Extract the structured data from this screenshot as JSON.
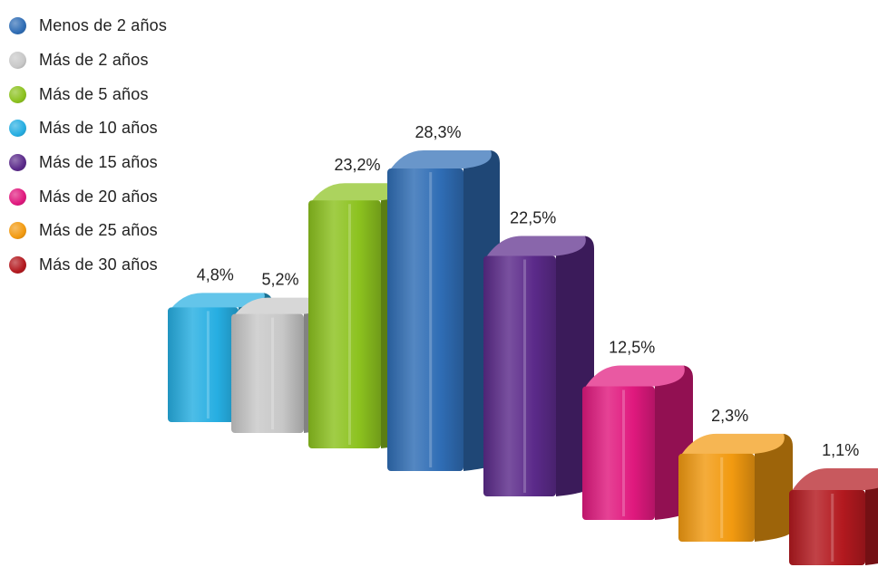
{
  "chart_data": {
    "type": "bar",
    "title": "",
    "xlabel": "",
    "ylabel": "",
    "grid": false,
    "legend_position": "top-left",
    "style": "3d",
    "legend": [
      {
        "label": "Menos de 2 años",
        "color": "#2f6db5"
      },
      {
        "label": "Más de 2 años",
        "color": "#c8c8c8"
      },
      {
        "label": "Más de 5 años",
        "color": "#8cc21f"
      },
      {
        "label": "Más de 10 años",
        "color": "#26aee2"
      },
      {
        "label": "Más de 15 años",
        "color": "#5b2a8a"
      },
      {
        "label": "Más de 20 años",
        "color": "#e0197e"
      },
      {
        "label": "Más de 25 años",
        "color": "#f29a10"
      },
      {
        "label": "Más de 30 años",
        "color": "#b3191f"
      }
    ],
    "bars": [
      {
        "category": "Más de 10 años",
        "value": 4.8,
        "label": "4,8%",
        "color": "#26aee2"
      },
      {
        "category": "Más de 2 años",
        "value": 5.2,
        "label": "5,2%",
        "color": "#c8c8c8"
      },
      {
        "category": "Más de 5 años",
        "value": 23.2,
        "label": "23,2%",
        "color": "#8cc21f"
      },
      {
        "category": "Menos de 2 años",
        "value": 28.3,
        "label": "28,3%",
        "color": "#2f6db5"
      },
      {
        "category": "Más de 15 años",
        "value": 22.5,
        "label": "22,5%",
        "color": "#5b2a8a"
      },
      {
        "category": "Más de 20 años",
        "value": 12.5,
        "label": "12,5%",
        "color": "#e0197e"
      },
      {
        "category": "Más de 25 años",
        "value": 2.3,
        "label": "2,3%",
        "color": "#f29a10"
      },
      {
        "category": "Más de 30 años",
        "value": 1.1,
        "label": "1,1%",
        "color": "#b3191f"
      }
    ]
  }
}
